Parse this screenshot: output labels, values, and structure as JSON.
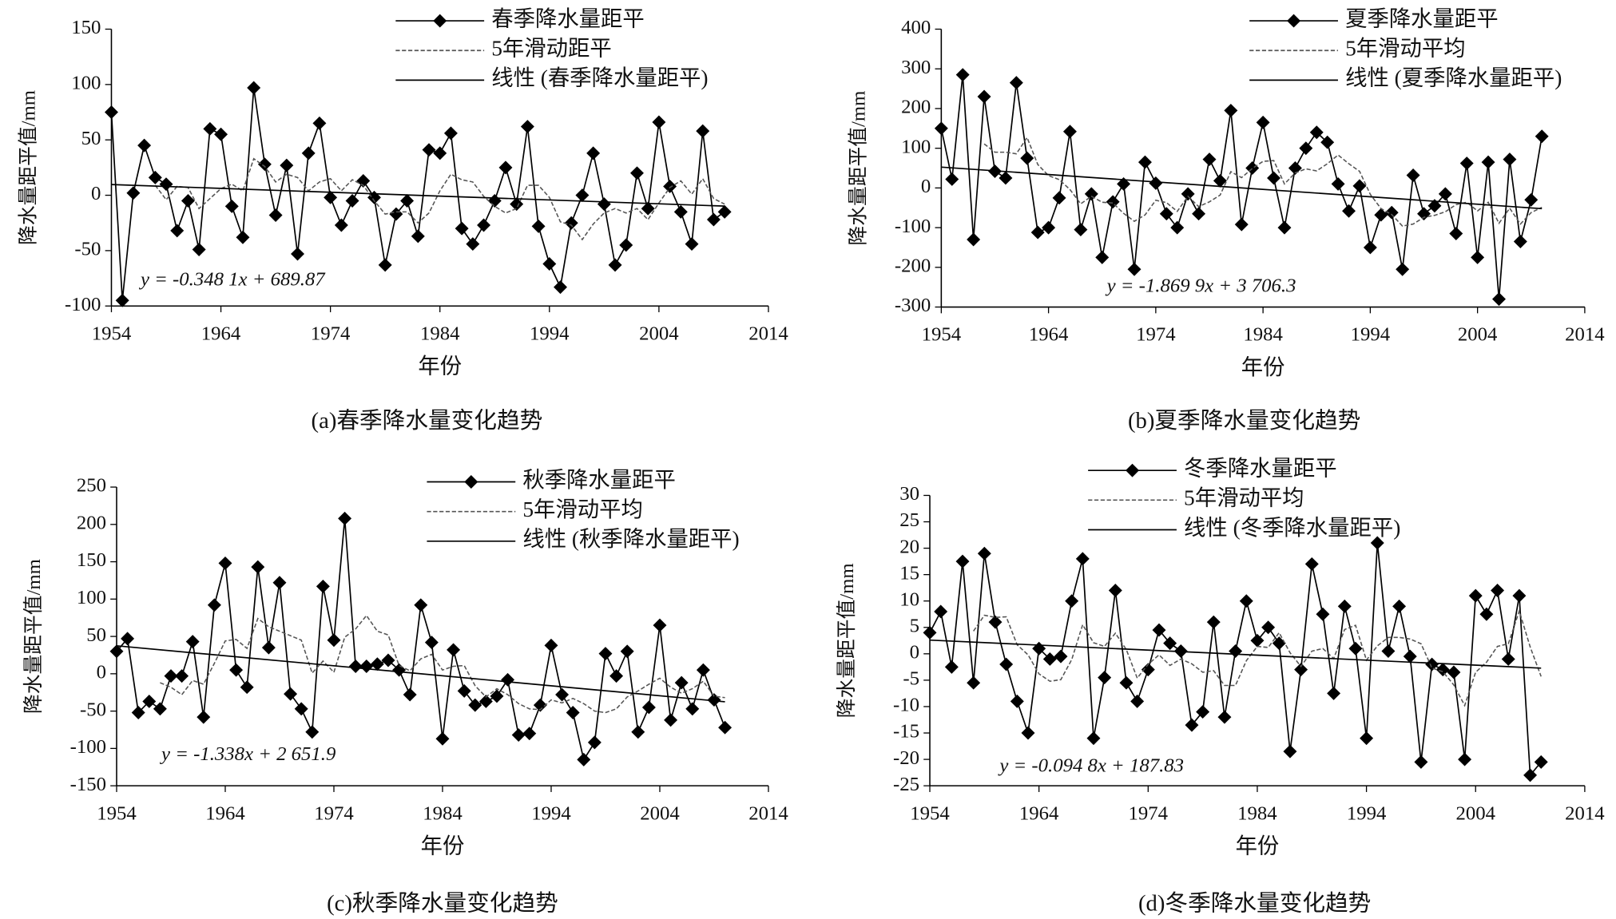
{
  "chart_data": [
    {
      "type": "line",
      "title": "(a)春季降水量变化趋势",
      "x_label": "年份",
      "y_label": "降水量距平值/mm",
      "annotation": "y = -0.348 1x + 689.87",
      "x": [
        1954,
        1955,
        1956,
        1957,
        1958,
        1959,
        1960,
        1961,
        1962,
        1963,
        1964,
        1965,
        1966,
        1967,
        1968,
        1969,
        1970,
        1971,
        1972,
        1973,
        1974,
        1975,
        1976,
        1977,
        1978,
        1979,
        1980,
        1981,
        1982,
        1983,
        1984,
        1985,
        1986,
        1987,
        1988,
        1989,
        1990,
        1991,
        1992,
        1993,
        1994,
        1995,
        1996,
        1997,
        1998,
        1999,
        2000,
        2001,
        2002,
        2003,
        2004,
        2005,
        2006,
        2007,
        2008,
        2009,
        2010
      ],
      "xlim": [
        1954,
        2014
      ],
      "xticks": [
        1954,
        1964,
        1974,
        1984,
        1994,
        2004,
        2014
      ],
      "ylim": [
        -100,
        150
      ],
      "yticks": [
        -100,
        -50,
        0,
        50,
        100,
        150
      ],
      "grid": false,
      "series": [
        {
          "name": "春季降水量距平",
          "color": "#000000",
          "marker": "diamond",
          "line_style": "solid",
          "values": [
            75,
            -95,
            2,
            45,
            16,
            10,
            -32,
            -5,
            -49,
            60,
            55,
            -10,
            -38,
            97,
            28,
            -18,
            27,
            -53,
            38,
            65,
            -2,
            -27,
            -5,
            13,
            -2,
            -63,
            -17,
            -5,
            -37,
            41,
            38,
            56,
            -30,
            -44,
            -27,
            -5,
            25,
            -8,
            62,
            -28,
            -62,
            -83,
            -25,
            0,
            38,
            -8,
            -63,
            -45,
            20,
            -12,
            66,
            8,
            -15,
            -44,
            58,
            -22,
            -15
          ]
        },
        {
          "name": "5年滑动距平",
          "color": "#555555",
          "marker": "none",
          "line_style": "dashed",
          "values": [
            null,
            null,
            null,
            null,
            9,
            -4,
            8,
            7,
            -12,
            -3,
            6,
            10,
            4,
            33,
            26,
            12,
            19,
            16,
            4,
            12,
            15,
            4,
            14,
            9,
            -5,
            -17,
            -15,
            -15,
            -25,
            -16,
            4,
            19,
            14,
            12,
            -1,
            -10,
            -16,
            -12,
            9,
            9,
            -2,
            -24,
            -27,
            -40,
            -26,
            -16,
            -12,
            -16,
            -12,
            -22,
            -7,
            7,
            13,
            1,
            15,
            -3,
            -8
          ]
        },
        {
          "name": "线性 (春季降水量距平)",
          "color": "#000000",
          "marker": "none",
          "line_style": "solid",
          "x": [
            1954,
            2010
          ],
          "values": [
            9.68,
            -9.81
          ]
        }
      ]
    },
    {
      "type": "line",
      "title": "(b)夏季降水量变化趋势",
      "x_label": "年份",
      "y_label": "降水量距平值/mm",
      "annotation": "y = -1.869 9x + 3 706.3",
      "x": [
        1954,
        1955,
        1956,
        1957,
        1958,
        1959,
        1960,
        1961,
        1962,
        1963,
        1964,
        1965,
        1966,
        1967,
        1968,
        1969,
        1970,
        1971,
        1972,
        1973,
        1974,
        1975,
        1976,
        1977,
        1978,
        1979,
        1980,
        1981,
        1982,
        1983,
        1984,
        1985,
        1986,
        1987,
        1988,
        1989,
        1990,
        1991,
        1992,
        1993,
        1994,
        1995,
        1996,
        1997,
        1998,
        1999,
        2000,
        2001,
        2002,
        2003,
        2004,
        2005,
        2006,
        2007,
        2008,
        2009,
        2010
      ],
      "xlim": [
        1954,
        2014
      ],
      "xticks": [
        1954,
        1964,
        1974,
        1984,
        1994,
        2004,
        2014
      ],
      "ylim": [
        -300,
        400
      ],
      "yticks": [
        -300,
        -200,
        -100,
        0,
        100,
        200,
        300,
        400
      ],
      "grid": false,
      "series": [
        {
          "name": "夏季降水量距平",
          "color": "#000000",
          "marker": "diamond",
          "line_style": "solid",
          "values": [
            150,
            22,
            285,
            -130,
            230,
            42,
            25,
            265,
            75,
            -112,
            -100,
            -25,
            142,
            -105,
            -15,
            -175,
            -35,
            10,
            -205,
            65,
            12,
            -65,
            -100,
            -15,
            -65,
            72,
            18,
            195,
            -92,
            50,
            165,
            25,
            -100,
            50,
            100,
            140,
            115,
            10,
            -58,
            5,
            -150,
            -68,
            -62,
            -205,
            32,
            -65,
            -45,
            -15,
            -115,
            62,
            -175,
            65,
            -280,
            72,
            -135,
            -30,
            130
          ]
        },
        {
          "name": "5年滑动平均",
          "color": "#555555",
          "marker": "none",
          "line_style": "dashed",
          "values": [
            null,
            null,
            null,
            null,
            111,
            90,
            90,
            86,
            127,
            59,
            31,
            21,
            -4,
            -40,
            -21,
            -36,
            -38,
            -64,
            -84,
            -68,
            -31,
            -37,
            -59,
            -21,
            -47,
            -35,
            -18,
            41,
            26,
            49,
            67,
            69,
            10,
            38,
            48,
            43,
            61,
            83,
            61,
            42,
            -16,
            -52,
            -67,
            -96,
            -91,
            -74,
            -69,
            -60,
            -42,
            -36,
            -58,
            -36,
            -89,
            -51,
            -91,
            -62,
            -49
          ]
        },
        {
          "name": "线性 (夏季降水量距平)",
          "color": "#000000",
          "marker": "none",
          "line_style": "solid",
          "x": [
            1954,
            2010
          ],
          "values": [
            52.5,
            -52.2
          ]
        }
      ]
    },
    {
      "type": "line",
      "title": "(c)秋季降水量变化趋势",
      "x_label": "年份",
      "y_label": "降水量距平值/mm",
      "annotation": "y = -1.338x + 2 651.9",
      "x": [
        1954,
        1955,
        1956,
        1957,
        1958,
        1959,
        1960,
        1961,
        1962,
        1963,
        1964,
        1965,
        1966,
        1967,
        1968,
        1969,
        1970,
        1971,
        1972,
        1973,
        1974,
        1975,
        1976,
        1977,
        1978,
        1979,
        1980,
        1981,
        1982,
        1983,
        1984,
        1985,
        1986,
        1987,
        1988,
        1989,
        1990,
        1991,
        1992,
        1993,
        1994,
        1995,
        1996,
        1997,
        1998,
        1999,
        2000,
        2001,
        2002,
        2003,
        2004,
        2005,
        2006,
        2007,
        2008,
        2009,
        2010
      ],
      "xlim": [
        1954,
        2014
      ],
      "xticks": [
        1954,
        1964,
        1974,
        1984,
        1994,
        2004,
        2014
      ],
      "ylim": [
        -150,
        250
      ],
      "yticks": [
        -150,
        -100,
        -50,
        0,
        50,
        100,
        150,
        200,
        250
      ],
      "grid": false,
      "series": [
        {
          "name": "秋季降水量距平",
          "color": "#000000",
          "marker": "diamond",
          "line_style": "solid",
          "values": [
            30,
            47,
            -52,
            -37,
            -47,
            -3,
            -3,
            43,
            -58,
            92,
            148,
            5,
            -18,
            143,
            35,
            122,
            -27,
            -47,
            -78,
            117,
            45,
            208,
            10,
            10,
            13,
            18,
            5,
            -28,
            92,
            42,
            -87,
            32,
            -23,
            -42,
            -37,
            -30,
            -8,
            -82,
            -80,
            -42,
            38,
            -28,
            -52,
            -115,
            -92,
            27,
            -3,
            30,
            -78,
            -45,
            65,
            -62,
            -12,
            -47,
            5,
            -35,
            -72
          ]
        },
        {
          "name": "5年滑动平均",
          "color": "#555555",
          "marker": "none",
          "line_style": "dashed",
          "values": [
            null,
            null,
            null,
            null,
            -12,
            -18,
            -28,
            -9,
            -14,
            14,
            44,
            46,
            34,
            74,
            63,
            57,
            51,
            45,
            1,
            17,
            2,
            49,
            60,
            78,
            57,
            52,
            11,
            4,
            20,
            26,
            5,
            10,
            11,
            -16,
            -31,
            -20,
            -28,
            -40,
            -47,
            -48,
            -35,
            -39,
            -33,
            -40,
            -50,
            -52,
            -47,
            -31,
            -23,
            -14,
            -6,
            -18,
            -26,
            -20,
            -10,
            -30,
            -32
          ]
        },
        {
          "name": "线性 (秋季降水量距平)",
          "color": "#000000",
          "marker": "none",
          "line_style": "solid",
          "x": [
            1954,
            2010
          ],
          "values": [
            37.45,
            -37.5
          ]
        }
      ]
    },
    {
      "type": "line",
      "title": "(d)冬季降水量变化趋势",
      "x_label": "年份",
      "y_label": "降水量距平值/mm",
      "annotation": "y = -0.094 8x + 187.83",
      "x": [
        1954,
        1955,
        1956,
        1957,
        1958,
        1959,
        1960,
        1961,
        1962,
        1963,
        1964,
        1965,
        1966,
        1967,
        1968,
        1969,
        1970,
        1971,
        1972,
        1973,
        1974,
        1975,
        1976,
        1977,
        1978,
        1979,
        1980,
        1981,
        1982,
        1983,
        1984,
        1985,
        1986,
        1987,
        1988,
        1989,
        1990,
        1991,
        1992,
        1993,
        1994,
        1995,
        1996,
        1997,
        1998,
        1999,
        2000,
        2001,
        2002,
        2003,
        2004,
        2005,
        2006,
        2007,
        2008,
        2009,
        2010
      ],
      "xlim": [
        1954,
        2014
      ],
      "xticks": [
        1954,
        1964,
        1974,
        1984,
        1994,
        2004,
        2014
      ],
      "ylim": [
        -25,
        30
      ],
      "yticks": [
        -25,
        -20,
        -15,
        -10,
        -5,
        0,
        5,
        10,
        15,
        20,
        25,
        30
      ],
      "grid": false,
      "series": [
        {
          "name": "冬季降水量距平",
          "color": "#000000",
          "marker": "diamond",
          "line_style": "solid",
          "values": [
            4,
            8,
            -2.5,
            17.5,
            -5.5,
            19,
            6,
            -2,
            -9,
            -15,
            1,
            -1,
            -0.5,
            10,
            18,
            -16,
            -4.5,
            12,
            -5.5,
            -9,
            -3,
            4.5,
            2,
            0.5,
            -13.5,
            -11,
            6,
            -12,
            0.5,
            10,
            2.5,
            5,
            2,
            -18.5,
            -3,
            17,
            7.5,
            -7.5,
            9,
            1,
            -16,
            21,
            0.5,
            9,
            -0.5,
            -20.5,
            -2,
            -3,
            -3.5,
            -20,
            11,
            7.5,
            12,
            -1,
            11,
            -23,
            -20.5
          ]
        },
        {
          "name": "5年滑动平均",
          "color": "#555555",
          "marker": "none",
          "line_style": "dashed",
          "values": [
            null,
            null,
            null,
            null,
            4.3,
            7.3,
            6.9,
            7,
            1.7,
            -0.2,
            -3.8,
            -5.2,
            -4.9,
            -1.1,
            5.5,
            2.1,
            1.4,
            3.9,
            0.8,
            -4.6,
            -2,
            -0.2,
            -2.2,
            -1,
            -1.9,
            -3.5,
            -3.2,
            -6,
            -6,
            -1.3,
            1.4,
            1.2,
            4,
            0.2,
            -2.4,
            0.5,
            1,
            -0.9,
            4.6,
            5.4,
            -1.2,
            1.5,
            3.1,
            3.1,
            2.8,
            1.9,
            -2.7,
            -3.4,
            -5.9,
            -9.8,
            -3.5,
            -1.6,
            1.4,
            1.9,
            8.1,
            1.3,
            -4.3
          ]
        },
        {
          "name": "线性 (冬季降水量距平)",
          "color": "#000000",
          "marker": "none",
          "line_style": "solid",
          "x": [
            1954,
            2010
          ],
          "values": [
            2.59,
            -2.72
          ]
        }
      ]
    }
  ]
}
